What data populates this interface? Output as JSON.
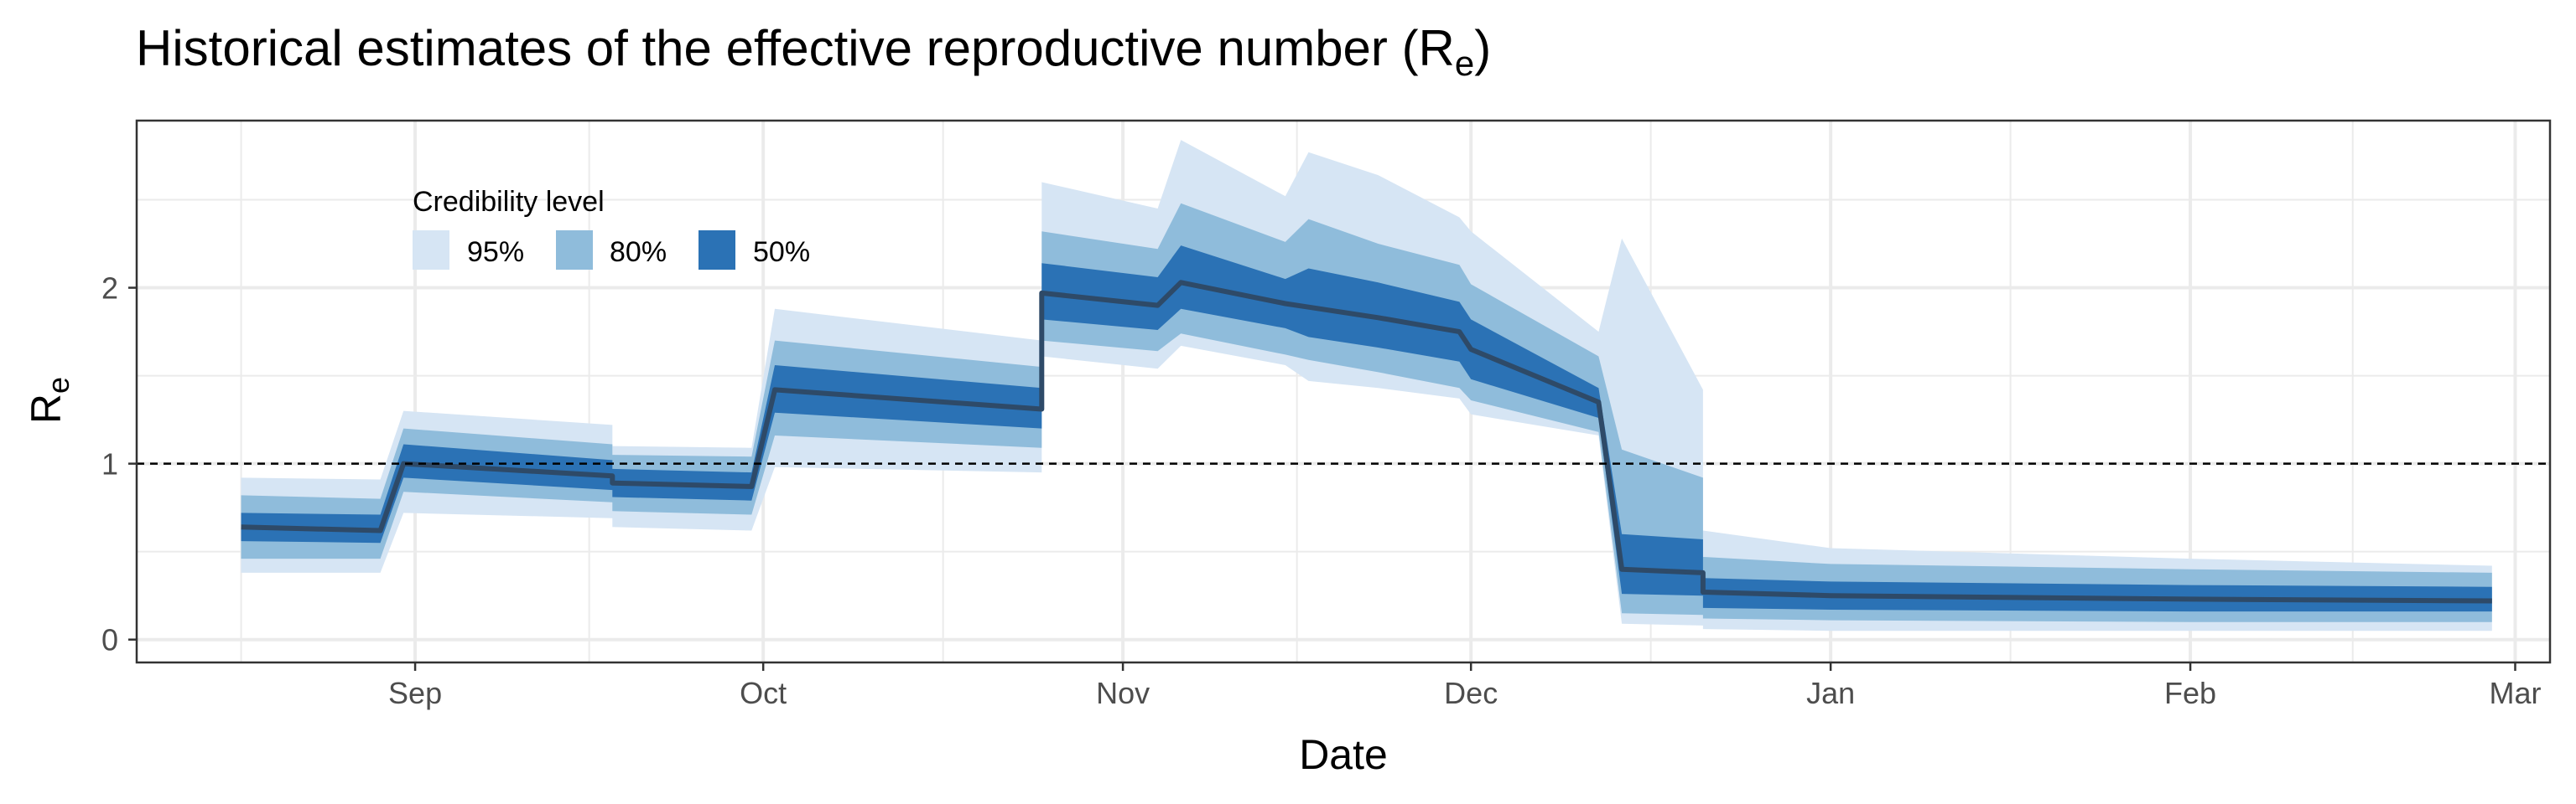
{
  "chart_data": {
    "type": "area",
    "title_main": "Historical estimates of the effective reproductive number (R",
    "title_sub": "e",
    "title_close": ")",
    "xlabel": "Date",
    "ylabel_main": "R",
    "ylabel_sub": "e",
    "x_axis": "date",
    "xlim": [
      "2020-08-08",
      "2021-03-04"
    ],
    "ylim": [
      -0.13,
      2.95
    ],
    "x_ticks": [
      {
        "date": "2020-09-01",
        "label": "Sep"
      },
      {
        "date": "2020-10-01",
        "label": "Oct"
      },
      {
        "date": "2020-11-01",
        "label": "Nov"
      },
      {
        "date": "2020-12-01",
        "label": "Dec"
      },
      {
        "date": "2021-01-01",
        "label": "Jan"
      },
      {
        "date": "2021-02-01",
        "label": "Feb"
      },
      {
        "date": "2021-03-01",
        "label": "Mar"
      }
    ],
    "y_ticks": [
      0,
      1,
      2
    ],
    "reference_line": 1,
    "grid": true,
    "legend": {
      "title": "Credibility level",
      "placement": "top-left",
      "items": [
        {
          "label": "95%",
          "color": "#d6e5f4"
        },
        {
          "label": "80%",
          "color": "#8fbcdb"
        },
        {
          "label": "50%",
          "color": "#2b72b5"
        }
      ]
    },
    "median_color": "#2e4a68",
    "reference_color": "#000000",
    "x": [
      "2020-08-17",
      "2020-08-29",
      "2020-08-31",
      "2020-09-18",
      "2020-09-18",
      "2020-09-30",
      "2020-10-02",
      "2020-10-25",
      "2020-10-25",
      "2020-11-04",
      "2020-11-06",
      "2020-11-15",
      "2020-11-17",
      "2020-11-23",
      "2020-11-30",
      "2020-12-01",
      "2020-12-12",
      "2020-12-14",
      "2020-12-21",
      "2020-12-21",
      "2021-01-01",
      "2021-02-01",
      "2021-02-27"
    ],
    "median": [
      0.64,
      0.62,
      1.0,
      0.93,
      0.89,
      0.87,
      1.42,
      1.31,
      1.97,
      1.9,
      2.03,
      1.91,
      1.89,
      1.83,
      1.75,
      1.65,
      1.35,
      0.4,
      0.38,
      0.27,
      0.25,
      0.23,
      0.22
    ],
    "band50_low": [
      0.56,
      0.55,
      0.92,
      0.85,
      0.81,
      0.79,
      1.29,
      1.2,
      1.82,
      1.76,
      1.88,
      1.77,
      1.72,
      1.66,
      1.58,
      1.48,
      1.26,
      0.26,
      0.25,
      0.18,
      0.17,
      0.16,
      0.16
    ],
    "band50_high": [
      0.72,
      0.71,
      1.11,
      1.02,
      0.97,
      0.95,
      1.56,
      1.43,
      2.14,
      2.06,
      2.24,
      2.05,
      2.11,
      2.03,
      1.92,
      1.82,
      1.43,
      0.6,
      0.57,
      0.35,
      0.33,
      0.31,
      0.3
    ],
    "band80_low": [
      0.46,
      0.46,
      0.84,
      0.78,
      0.73,
      0.71,
      1.16,
      1.09,
      1.7,
      1.64,
      1.74,
      1.62,
      1.59,
      1.52,
      1.43,
      1.36,
      1.18,
      0.15,
      0.14,
      0.12,
      0.11,
      0.1,
      0.1
    ],
    "band80_high": [
      0.82,
      0.8,
      1.2,
      1.11,
      1.05,
      1.04,
      1.7,
      1.55,
      2.32,
      2.22,
      2.48,
      2.26,
      2.39,
      2.25,
      2.13,
      2.02,
      1.61,
      1.08,
      0.92,
      0.47,
      0.43,
      0.4,
      0.38
    ],
    "band95_low": [
      0.38,
      0.38,
      0.72,
      0.69,
      0.64,
      0.62,
      0.98,
      0.95,
      1.61,
      1.54,
      1.67,
      1.56,
      1.47,
      1.43,
      1.37,
      1.28,
      1.16,
      0.09,
      0.08,
      0.06,
      0.05,
      0.05,
      0.05
    ],
    "band95_high": [
      0.92,
      0.91,
      1.3,
      1.22,
      1.1,
      1.09,
      1.88,
      1.7,
      2.6,
      2.45,
      2.84,
      2.52,
      2.77,
      2.64,
      2.4,
      2.32,
      1.75,
      2.28,
      1.42,
      0.62,
      0.52,
      0.46,
      0.42
    ]
  }
}
